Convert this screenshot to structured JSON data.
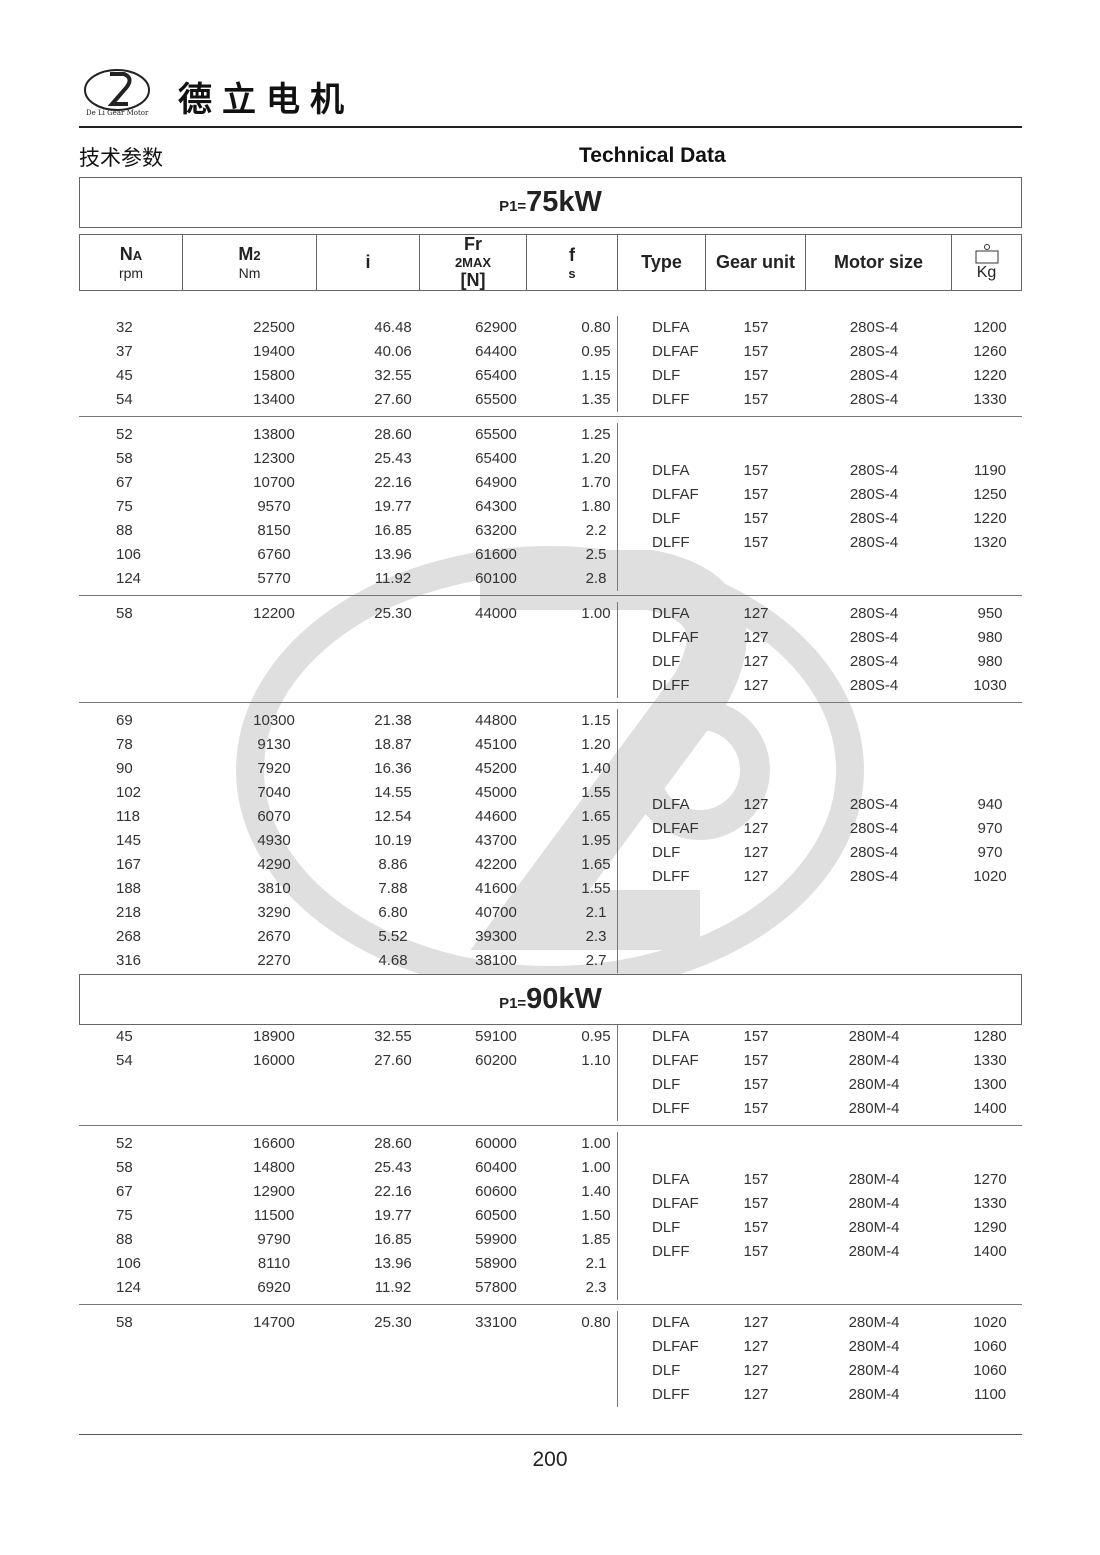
{
  "header": {
    "brand": "德立电机",
    "logo_text": "De Li Gear Motor",
    "title_cn": "技术参数",
    "title_en": "Technical Data"
  },
  "columns": {
    "na": "NA",
    "na_unit": "rpm",
    "m2": "M2",
    "m2_unit": "Nm",
    "i": "i",
    "fr": "Fr2MAX[N]",
    "fs": "fs",
    "type": "Type",
    "gear": "Gear unit",
    "motor": "Motor size",
    "kg": "Kg",
    "weight_icon": "weight-icon"
  },
  "sections": [
    {
      "power_prefix": "P1=",
      "power_value": "75kW",
      "groups": [
        {
          "left": [
            [
              "32",
              "22500",
              "46.48",
              "62900",
              "0.80"
            ],
            [
              "37",
              "19400",
              "40.06",
              "64400",
              "0.95"
            ],
            [
              "45",
              "15800",
              "32.55",
              "65400",
              "1.15"
            ],
            [
              "54",
              "13400",
              "27.60",
              "65500",
              "1.35"
            ]
          ],
          "right": [
            [
              "DLFA",
              "157",
              "280S-4",
              "1200"
            ],
            [
              "DLFAF",
              "157",
              "280S-4",
              "1260"
            ],
            [
              "DLF",
              "157",
              "280S-4",
              "1220"
            ],
            [
              "DLFF",
              "157",
              "280S-4",
              "1330"
            ]
          ]
        },
        {
          "left": [
            [
              "52",
              "13800",
              "28.60",
              "65500",
              "1.25"
            ],
            [
              "58",
              "12300",
              "25.43",
              "65400",
              "1.20"
            ],
            [
              "67",
              "10700",
              "22.16",
              "64900",
              "1.70"
            ],
            [
              "75",
              "9570",
              "19.77",
              "64300",
              "1.80"
            ],
            [
              "88",
              "8150",
              "16.85",
              "63200",
              "2.2"
            ],
            [
              "106",
              "6760",
              "13.96",
              "61600",
              "2.5"
            ],
            [
              "124",
              "5770",
              "11.92",
              "60100",
              "2.8"
            ]
          ],
          "right": [
            [
              "DLFA",
              "157",
              "280S-4",
              "1190"
            ],
            [
              "DLFAF",
              "157",
              "280S-4",
              "1250"
            ],
            [
              "DLF",
              "157",
              "280S-4",
              "1220"
            ],
            [
              "DLFF",
              "157",
              "280S-4",
              "1320"
            ]
          ]
        },
        {
          "left": [
            [
              "58",
              "12200",
              "25.30",
              "44000",
              "1.00"
            ]
          ],
          "right": [
            [
              "DLFA",
              "127",
              "280S-4",
              "950"
            ],
            [
              "DLFAF",
              "127",
              "280S-4",
              "980"
            ],
            [
              "DLF",
              "127",
              "280S-4",
              "980"
            ],
            [
              "DLFF",
              "127",
              "280S-4",
              "1030"
            ]
          ]
        },
        {
          "left": [
            [
              "69",
              "10300",
              "21.38",
              "44800",
              "1.15"
            ],
            [
              "78",
              "9130",
              "18.87",
              "45100",
              "1.20"
            ],
            [
              "90",
              "7920",
              "16.36",
              "45200",
              "1.40"
            ],
            [
              "102",
              "7040",
              "14.55",
              "45000",
              "1.55"
            ],
            [
              "118",
              "6070",
              "12.54",
              "44600",
              "1.65"
            ],
            [
              "145",
              "4930",
              "10.19",
              "43700",
              "1.95"
            ],
            [
              "167",
              "4290",
              "8.86",
              "42200",
              "1.65"
            ],
            [
              "188",
              "3810",
              "7.88",
              "41600",
              "1.55"
            ],
            [
              "218",
              "3290",
              "6.80",
              "40700",
              "2.1"
            ],
            [
              "268",
              "2670",
              "5.52",
              "39300",
              "2.3"
            ],
            [
              "316",
              "2270",
              "4.68",
              "38100",
              "2.7"
            ]
          ],
          "right": [
            [
              "DLFA",
              "127",
              "280S-4",
              "940"
            ],
            [
              "DLFAF",
              "127",
              "280S-4",
              "970"
            ],
            [
              "DLF",
              "127",
              "280S-4",
              "970"
            ],
            [
              "DLFF",
              "127",
              "280S-4",
              "1020"
            ]
          ]
        }
      ]
    },
    {
      "power_prefix": "P1=",
      "power_value": "90kW",
      "groups": [
        {
          "left": [
            [
              "45",
              "18900",
              "32.55",
              "59100",
              "0.95"
            ],
            [
              "54",
              "16000",
              "27.60",
              "60200",
              "1.10"
            ]
          ],
          "right": [
            [
              "DLFA",
              "157",
              "280M-4",
              "1280"
            ],
            [
              "DLFAF",
              "157",
              "280M-4",
              "1330"
            ],
            [
              "DLF",
              "157",
              "280M-4",
              "1300"
            ],
            [
              "DLFF",
              "157",
              "280M-4",
              "1400"
            ]
          ]
        },
        {
          "left": [
            [
              "52",
              "16600",
              "28.60",
              "60000",
              "1.00"
            ],
            [
              "58",
              "14800",
              "25.43",
              "60400",
              "1.00"
            ],
            [
              "67",
              "12900",
              "22.16",
              "60600",
              "1.40"
            ],
            [
              "75",
              "11500",
              "19.77",
              "60500",
              "1.50"
            ],
            [
              "88",
              "9790",
              "16.85",
              "59900",
              "1.85"
            ],
            [
              "106",
              "8110",
              "13.96",
              "58900",
              "2.1"
            ],
            [
              "124",
              "6920",
              "11.92",
              "57800",
              "2.3"
            ]
          ],
          "right": [
            [
              "DLFA",
              "157",
              "280M-4",
              "1270"
            ],
            [
              "DLFAF",
              "157",
              "280M-4",
              "1330"
            ],
            [
              "DLF",
              "157",
              "280M-4",
              "1290"
            ],
            [
              "DLFF",
              "157",
              "280M-4",
              "1400"
            ]
          ]
        },
        {
          "left": [
            [
              "58",
              "14700",
              "25.30",
              "33100",
              "0.80"
            ]
          ],
          "right": [
            [
              "DLFA",
              "127",
              "280M-4",
              "1020"
            ],
            [
              "DLFAF",
              "127",
              "280M-4",
              "1060"
            ],
            [
              "DLF",
              "127",
              "280M-4",
              "1060"
            ],
            [
              "DLFF",
              "127",
              "280M-4",
              "1100"
            ]
          ]
        }
      ]
    }
  ],
  "footer": {
    "page_number": "200"
  }
}
